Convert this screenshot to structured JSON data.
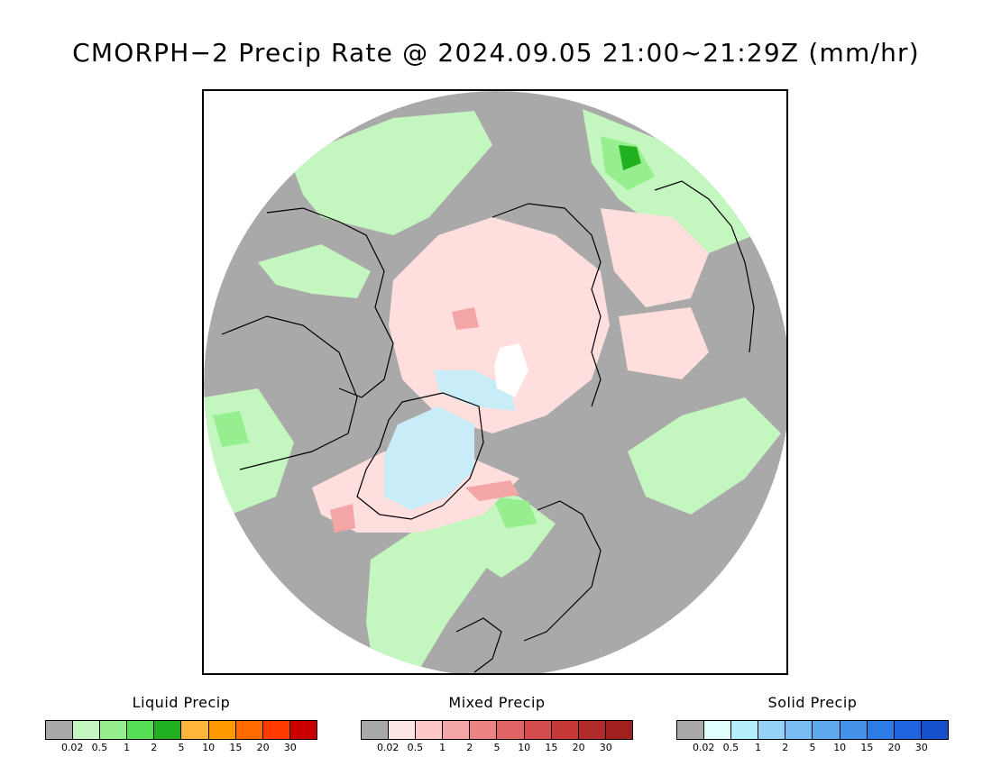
{
  "title": "CMORPH−2 Precip Rate @ 2024.09.05 21:00~21:29Z (mm/hr)",
  "legends": [
    {
      "title": "Liquid Precip",
      "colors": [
        "#a9a9a9",
        "#c4f7bf",
        "#96ee8e",
        "#55e055",
        "#20b020",
        "#ffb63a",
        "#ff9a00",
        "#ff6a00",
        "#ff3a00",
        "#c80000"
      ],
      "ticks": [
        "0.02",
        "0.5",
        "1",
        "2",
        "5",
        "10",
        "15",
        "20",
        "30"
      ]
    },
    {
      "title": "Mixed Precip",
      "colors": [
        "#a9a9a9",
        "#ffe6e6",
        "#ffc8c8",
        "#f4a6a6",
        "#ea8484",
        "#e06464",
        "#d44c4c",
        "#c63838",
        "#b22a2a",
        "#a02020"
      ],
      "ticks": [
        "0.02",
        "0.5",
        "1",
        "2",
        "5",
        "10",
        "15",
        "20",
        "30"
      ]
    },
    {
      "title": "Solid Precip",
      "colors": [
        "#a9a9a9",
        "#e0ffff",
        "#b4eefa",
        "#96d2f8",
        "#78bcf4",
        "#5ea8f0",
        "#4492ea",
        "#2e7ce6",
        "#1e64e0",
        "#1450cc"
      ],
      "ticks": [
        "0.02",
        "0.5",
        "1",
        "2",
        "5",
        "10",
        "15",
        "20",
        "30"
      ]
    }
  ],
  "map": {
    "background": "#a9a9a9",
    "liquid_light": "#c4f7bf",
    "liquid_mid": "#96ee8e",
    "liquid_heavy": "#20b020",
    "mixed_light": "#ffdede",
    "mixed_mid": "#f4a6a6",
    "solid_light": "#c8ecf8",
    "solid_bright": "#ffffff",
    "coast": "#000000"
  }
}
